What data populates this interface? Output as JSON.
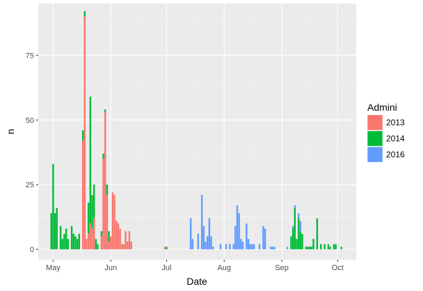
{
  "chart_data": {
    "type": "bar",
    "stacked": true,
    "xlabel": "Date",
    "ylabel": "n",
    "x_range": [
      "2016-04-23",
      "2016-10-11"
    ],
    "ylim": [
      -4,
      95
    ],
    "y_ticks": [
      0,
      25,
      50,
      75
    ],
    "x_ticks": [
      {
        "date": "2016-05-01",
        "label": "May"
      },
      {
        "date": "2016-06-01",
        "label": "Jun"
      },
      {
        "date": "2016-07-01",
        "label": "Jul"
      },
      {
        "date": "2016-08-01",
        "label": "Aug"
      },
      {
        "date": "2016-09-01",
        "label": "Sep"
      },
      {
        "date": "2016-10-01",
        "label": "Oct"
      }
    ],
    "background": "#ebebeb",
    "gridlines": true,
    "legend": {
      "title": "Admini",
      "position": "right"
    },
    "series": [
      {
        "name": "2013",
        "color": "#F8766D",
        "points": [
          [
            "2016-05-17",
            42
          ],
          [
            "2016-05-18",
            90
          ],
          [
            "2016-05-19",
            4
          ],
          [
            "2016-05-20",
            6
          ],
          [
            "2016-05-21",
            10
          ],
          [
            "2016-05-22",
            8
          ],
          [
            "2016-05-23",
            12
          ],
          [
            "2016-05-27",
            5
          ],
          [
            "2016-05-28",
            35
          ],
          [
            "2016-05-29",
            53
          ],
          [
            "2016-05-30",
            21
          ],
          [
            "2016-05-31",
            3
          ],
          [
            "2016-06-01",
            5
          ],
          [
            "2016-06-02",
            22
          ],
          [
            "2016-06-03",
            21
          ],
          [
            "2016-06-04",
            11
          ],
          [
            "2016-06-05",
            10
          ],
          [
            "2016-06-06",
            8
          ],
          [
            "2016-06-07",
            2
          ],
          [
            "2016-06-08",
            2
          ],
          [
            "2016-06-09",
            7
          ],
          [
            "2016-06-10",
            3
          ],
          [
            "2016-06-11",
            7
          ],
          [
            "2016-06-12",
            3
          ],
          [
            "2016-06-30",
            1
          ]
        ]
      },
      {
        "name": "2014",
        "color": "#00BA38",
        "points": [
          [
            "2016-04-30",
            14
          ],
          [
            "2016-05-01",
            33
          ],
          [
            "2016-05-02",
            14
          ],
          [
            "2016-05-03",
            16
          ],
          [
            "2016-05-05",
            9
          ],
          [
            "2016-05-06",
            4
          ],
          [
            "2016-05-07",
            6
          ],
          [
            "2016-05-08",
            8
          ],
          [
            "2016-05-09",
            4
          ],
          [
            "2016-05-11",
            9
          ],
          [
            "2016-05-12",
            6
          ],
          [
            "2016-05-13",
            5
          ],
          [
            "2016-05-14",
            4
          ],
          [
            "2016-05-15",
            6
          ],
          [
            "2016-05-17",
            4
          ],
          [
            "2016-05-18",
            2
          ],
          [
            "2016-05-20",
            12
          ],
          [
            "2016-05-21",
            49
          ],
          [
            "2016-05-22",
            13
          ],
          [
            "2016-05-23",
            13
          ],
          [
            "2016-05-24",
            4
          ],
          [
            "2016-05-25",
            2
          ],
          [
            "2016-05-27",
            2
          ],
          [
            "2016-05-28",
            2
          ],
          [
            "2016-05-29",
            1
          ],
          [
            "2016-05-30",
            4
          ],
          [
            "2016-05-31",
            4
          ],
          [
            "2016-07-01",
            1
          ],
          [
            "2016-09-06",
            5
          ],
          [
            "2016-09-07",
            8
          ],
          [
            "2016-09-08",
            16
          ],
          [
            "2016-09-09",
            4
          ],
          [
            "2016-09-10",
            12
          ],
          [
            "2016-09-11",
            7
          ],
          [
            "2016-09-12",
            6
          ],
          [
            "2016-09-14",
            1
          ],
          [
            "2016-09-15",
            1
          ],
          [
            "2016-09-16",
            1
          ],
          [
            "2016-09-17",
            1
          ],
          [
            "2016-09-18",
            4
          ],
          [
            "2016-09-20",
            12
          ],
          [
            "2016-09-22",
            2
          ],
          [
            "2016-09-24",
            2
          ],
          [
            "2016-09-26",
            2
          ],
          [
            "2016-09-27",
            1
          ],
          [
            "2016-09-29",
            2
          ],
          [
            "2016-09-30",
            2
          ],
          [
            "2016-10-03",
            1
          ]
        ]
      },
      {
        "name": "2016",
        "color": "#619CFF",
        "points": [
          [
            "2016-07-14",
            12
          ],
          [
            "2016-07-15",
            4
          ],
          [
            "2016-07-18",
            6
          ],
          [
            "2016-07-20",
            21
          ],
          [
            "2016-07-21",
            9
          ],
          [
            "2016-07-22",
            3
          ],
          [
            "2016-07-23",
            5
          ],
          [
            "2016-07-24",
            12
          ],
          [
            "2016-07-25",
            5
          ],
          [
            "2016-07-26",
            1
          ],
          [
            "2016-07-30",
            2
          ],
          [
            "2016-08-02",
            2
          ],
          [
            "2016-08-04",
            2
          ],
          [
            "2016-08-06",
            2
          ],
          [
            "2016-08-07",
            9
          ],
          [
            "2016-08-08",
            17
          ],
          [
            "2016-08-09",
            14
          ],
          [
            "2016-08-10",
            4
          ],
          [
            "2016-08-11",
            3
          ],
          [
            "2016-08-13",
            10
          ],
          [
            "2016-08-14",
            4
          ],
          [
            "2016-08-15",
            2
          ],
          [
            "2016-08-16",
            2
          ],
          [
            "2016-08-17",
            2
          ],
          [
            "2016-08-20",
            2
          ],
          [
            "2016-08-22",
            9
          ],
          [
            "2016-08-23",
            8
          ],
          [
            "2016-08-26",
            1
          ],
          [
            "2016-08-27",
            1
          ],
          [
            "2016-08-28",
            1
          ],
          [
            "2016-09-04",
            1
          ],
          [
            "2016-09-07",
            1
          ],
          [
            "2016-09-08",
            1
          ],
          [
            "2016-09-10",
            2
          ],
          [
            "2016-09-11",
            4
          ]
        ]
      }
    ]
  }
}
